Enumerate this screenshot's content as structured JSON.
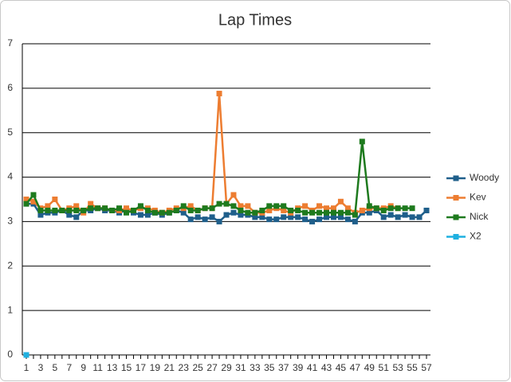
{
  "chart_data": {
    "type": "line",
    "title": "Lap Times",
    "categories": [
      1,
      null,
      3,
      null,
      5,
      null,
      7,
      null,
      9,
      null,
      11,
      null,
      13,
      null,
      15,
      null,
      17,
      null,
      19,
      null,
      21,
      null,
      23,
      null,
      25,
      null,
      27,
      null,
      29,
      null,
      31,
      null,
      33,
      null,
      35,
      null,
      37,
      null,
      39,
      null,
      41,
      null,
      43,
      null,
      45,
      null,
      47,
      null,
      49,
      null,
      51,
      null,
      53,
      null,
      55,
      null,
      57
    ],
    "series": [
      {
        "name": "Woody",
        "color": "#1f5f8b",
        "values": [
          3.4,
          3.4,
          3.15,
          3.2,
          3.2,
          3.25,
          3.15,
          3.1,
          3.25,
          3.25,
          3.3,
          3.25,
          3.25,
          3.2,
          3.25,
          3.2,
          3.15,
          3.15,
          3.2,
          3.15,
          3.2,
          3.25,
          3.2,
          3.05,
          3.1,
          3.05,
          3.1,
          3.0,
          3.15,
          3.2,
          3.15,
          3.15,
          3.1,
          3.1,
          3.05,
          3.05,
          3.1,
          3.1,
          3.1,
          3.05,
          3.0,
          3.05,
          3.1,
          3.1,
          3.1,
          3.05,
          3.0,
          3.2,
          3.2,
          3.25,
          3.1,
          3.15,
          3.1,
          3.15,
          3.1,
          3.1,
          3.25
        ]
      },
      {
        "name": "Kev",
        "color": "#ed7d31",
        "values": [
          3.5,
          3.45,
          3.3,
          3.35,
          3.5,
          3.25,
          3.3,
          3.35,
          3.2,
          3.4,
          3.3,
          3.3,
          3.25,
          3.25,
          3.3,
          3.25,
          3.3,
          3.3,
          3.25,
          3.2,
          3.25,
          3.3,
          3.3,
          3.35,
          3.25,
          3.3,
          3.3,
          5.88,
          3.4,
          3.6,
          3.35,
          3.35,
          3.2,
          3.2,
          3.25,
          3.3,
          3.25,
          3.2,
          3.3,
          3.35,
          3.25,
          3.35,
          3.3,
          3.3,
          3.45,
          3.3,
          3.2,
          3.25,
          3.3,
          3.3,
          3.3,
          3.35,
          3.3,
          null,
          null,
          null,
          null
        ]
      },
      {
        "name": "Nick",
        "color": "#1e7a1e",
        "values": [
          3.4,
          3.6,
          3.25,
          3.25,
          3.25,
          3.25,
          3.25,
          3.25,
          3.25,
          3.3,
          3.3,
          3.3,
          3.25,
          3.3,
          3.2,
          3.25,
          3.35,
          3.25,
          3.2,
          3.2,
          3.2,
          3.25,
          3.35,
          3.25,
          3.25,
          3.3,
          3.3,
          3.4,
          3.4,
          3.35,
          3.25,
          3.2,
          3.2,
          3.25,
          3.35,
          3.35,
          3.35,
          3.25,
          3.25,
          3.2,
          3.2,
          3.2,
          3.2,
          3.2,
          3.2,
          3.2,
          3.15,
          4.8,
          3.35,
          3.3,
          3.25,
          3.3,
          3.3,
          3.3,
          3.3,
          null,
          null
        ]
      },
      {
        "name": "X2",
        "color": "#1fb0e0",
        "values": [
          0,
          null,
          null,
          null,
          null,
          null,
          null,
          null,
          null,
          null,
          null,
          null,
          null,
          null,
          null,
          null,
          null,
          null,
          null,
          null,
          null,
          null,
          null,
          null,
          null,
          null,
          null,
          null,
          null,
          null,
          null,
          null,
          null,
          null,
          null,
          null,
          null,
          null,
          null,
          null,
          null,
          null,
          null,
          null,
          null,
          null,
          null,
          null,
          null,
          null,
          null,
          null,
          null,
          null,
          null,
          null,
          null
        ]
      }
    ],
    "ylim": [
      0,
      7
    ],
    "yticks": [
      0,
      1,
      2,
      3,
      4,
      5,
      6,
      7
    ],
    "grid": true,
    "legend": "right"
  }
}
